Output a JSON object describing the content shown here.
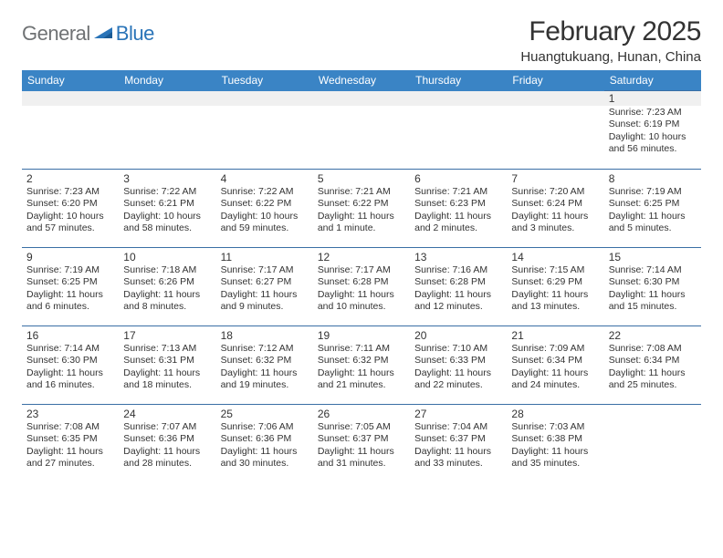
{
  "brand": {
    "general": "General",
    "blue": "Blue"
  },
  "title": "February 2025",
  "location": "Huangtukuang, Hunan, China",
  "colors": {
    "header_bg": "#3a84c5",
    "header_text": "#ffffff",
    "border": "#3a6fa5",
    "first_row_bg": "#f0f0f0",
    "text": "#333333",
    "logo_gray": "#6f7274",
    "logo_blue": "#2a74b8",
    "background": "#ffffff"
  },
  "typography": {
    "title_fontsize": 30,
    "location_fontsize": 15,
    "dayheader_fontsize": 12,
    "daynumber_fontsize": 12,
    "detail_fontsize": 10.5
  },
  "day_headers": [
    "Sunday",
    "Monday",
    "Tuesday",
    "Wednesday",
    "Thursday",
    "Friday",
    "Saturday"
  ],
  "weeks": [
    [
      null,
      null,
      null,
      null,
      null,
      null,
      {
        "n": "1",
        "sunrise": "7:23 AM",
        "sunset": "6:19 PM",
        "daylight": "10 hours and 56 minutes."
      }
    ],
    [
      {
        "n": "2",
        "sunrise": "7:23 AM",
        "sunset": "6:20 PM",
        "daylight": "10 hours and 57 minutes."
      },
      {
        "n": "3",
        "sunrise": "7:22 AM",
        "sunset": "6:21 PM",
        "daylight": "10 hours and 58 minutes."
      },
      {
        "n": "4",
        "sunrise": "7:22 AM",
        "sunset": "6:22 PM",
        "daylight": "10 hours and 59 minutes."
      },
      {
        "n": "5",
        "sunrise": "7:21 AM",
        "sunset": "6:22 PM",
        "daylight": "11 hours and 1 minute."
      },
      {
        "n": "6",
        "sunrise": "7:21 AM",
        "sunset": "6:23 PM",
        "daylight": "11 hours and 2 minutes."
      },
      {
        "n": "7",
        "sunrise": "7:20 AM",
        "sunset": "6:24 PM",
        "daylight": "11 hours and 3 minutes."
      },
      {
        "n": "8",
        "sunrise": "7:19 AM",
        "sunset": "6:25 PM",
        "daylight": "11 hours and 5 minutes."
      }
    ],
    [
      {
        "n": "9",
        "sunrise": "7:19 AM",
        "sunset": "6:25 PM",
        "daylight": "11 hours and 6 minutes."
      },
      {
        "n": "10",
        "sunrise": "7:18 AM",
        "sunset": "6:26 PM",
        "daylight": "11 hours and 8 minutes."
      },
      {
        "n": "11",
        "sunrise": "7:17 AM",
        "sunset": "6:27 PM",
        "daylight": "11 hours and 9 minutes."
      },
      {
        "n": "12",
        "sunrise": "7:17 AM",
        "sunset": "6:28 PM",
        "daylight": "11 hours and 10 minutes."
      },
      {
        "n": "13",
        "sunrise": "7:16 AM",
        "sunset": "6:28 PM",
        "daylight": "11 hours and 12 minutes."
      },
      {
        "n": "14",
        "sunrise": "7:15 AM",
        "sunset": "6:29 PM",
        "daylight": "11 hours and 13 minutes."
      },
      {
        "n": "15",
        "sunrise": "7:14 AM",
        "sunset": "6:30 PM",
        "daylight": "11 hours and 15 minutes."
      }
    ],
    [
      {
        "n": "16",
        "sunrise": "7:14 AM",
        "sunset": "6:30 PM",
        "daylight": "11 hours and 16 minutes."
      },
      {
        "n": "17",
        "sunrise": "7:13 AM",
        "sunset": "6:31 PM",
        "daylight": "11 hours and 18 minutes."
      },
      {
        "n": "18",
        "sunrise": "7:12 AM",
        "sunset": "6:32 PM",
        "daylight": "11 hours and 19 minutes."
      },
      {
        "n": "19",
        "sunrise": "7:11 AM",
        "sunset": "6:32 PM",
        "daylight": "11 hours and 21 minutes."
      },
      {
        "n": "20",
        "sunrise": "7:10 AM",
        "sunset": "6:33 PM",
        "daylight": "11 hours and 22 minutes."
      },
      {
        "n": "21",
        "sunrise": "7:09 AM",
        "sunset": "6:34 PM",
        "daylight": "11 hours and 24 minutes."
      },
      {
        "n": "22",
        "sunrise": "7:08 AM",
        "sunset": "6:34 PM",
        "daylight": "11 hours and 25 minutes."
      }
    ],
    [
      {
        "n": "23",
        "sunrise": "7:08 AM",
        "sunset": "6:35 PM",
        "daylight": "11 hours and 27 minutes."
      },
      {
        "n": "24",
        "sunrise": "7:07 AM",
        "sunset": "6:36 PM",
        "daylight": "11 hours and 28 minutes."
      },
      {
        "n": "25",
        "sunrise": "7:06 AM",
        "sunset": "6:36 PM",
        "daylight": "11 hours and 30 minutes."
      },
      {
        "n": "26",
        "sunrise": "7:05 AM",
        "sunset": "6:37 PM",
        "daylight": "11 hours and 31 minutes."
      },
      {
        "n": "27",
        "sunrise": "7:04 AM",
        "sunset": "6:37 PM",
        "daylight": "11 hours and 33 minutes."
      },
      {
        "n": "28",
        "sunrise": "7:03 AM",
        "sunset": "6:38 PM",
        "daylight": "11 hours and 35 minutes."
      },
      null
    ]
  ],
  "labels": {
    "sunrise": "Sunrise:",
    "sunset": "Sunset:",
    "daylight": "Daylight:"
  }
}
